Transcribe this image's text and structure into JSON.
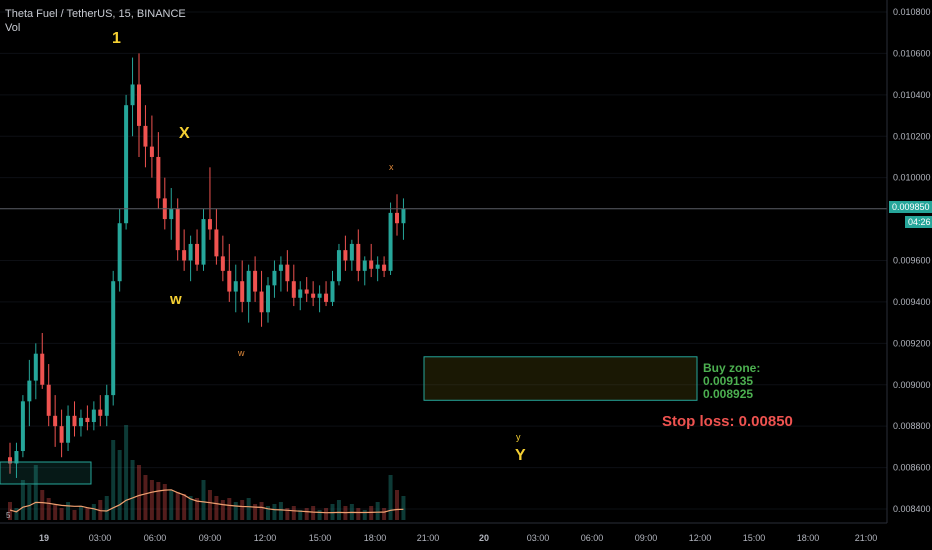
{
  "header": {
    "symbol_line": "Theta Fuel / TetherUS, 15, BINANCE",
    "vol_label": "Vol"
  },
  "price_axis": {
    "ticks": [
      "0.010800",
      "0.010600",
      "0.010400",
      "0.010200",
      "0.010000",
      "0.009850",
      "0.009600",
      "0.009400",
      "0.009200",
      "0.009000",
      "0.008800",
      "0.008600",
      "0.008400"
    ],
    "current_price": "0.009850",
    "countdown": "04:26"
  },
  "time_axis": {
    "ticks": [
      "19",
      "03:00",
      "06:00",
      "09:00",
      "12:00",
      "15:00",
      "18:00",
      "21:00",
      "20",
      "03:00",
      "06:00",
      "09:00",
      "12:00",
      "15:00",
      "18:00",
      "21:00"
    ]
  },
  "annotations": {
    "wave_1": "1",
    "wave_x_major": "X",
    "wave_w_major": "w",
    "wave_x_minor": "x",
    "wave_w_minor": "w",
    "wave_y_minor": "y",
    "wave_y_major": "Y",
    "buy_zone_title": "Buy zone:",
    "buy_zone_high": "0.009135",
    "buy_zone_low": "0.008925",
    "stop_loss": "Stop loss: 0.00850",
    "vol_axis_tick": "5"
  },
  "colors": {
    "up": "#26a69a",
    "down": "#ef5350",
    "wave_label": "#f5d033",
    "minor_label": "#e0893a",
    "buy_zone_border": "#26a69a",
    "buy_zone_text": "#4caf50",
    "stop_loss": "#ef5350",
    "vol_ma": "#f0a070"
  },
  "chart_data": {
    "type": "candlestick",
    "title": "Theta Fuel / TetherUS, 15, BINANCE",
    "interval": "15m",
    "ylim": [
      0.00835,
      0.01085
    ],
    "current_price": 0.00985,
    "buy_zone": [
      0.008925,
      0.009135
    ],
    "stop_loss": 0.0085,
    "wave_labels": [
      "1",
      "X",
      "w",
      "x",
      "w",
      "y",
      "Y"
    ]
  }
}
